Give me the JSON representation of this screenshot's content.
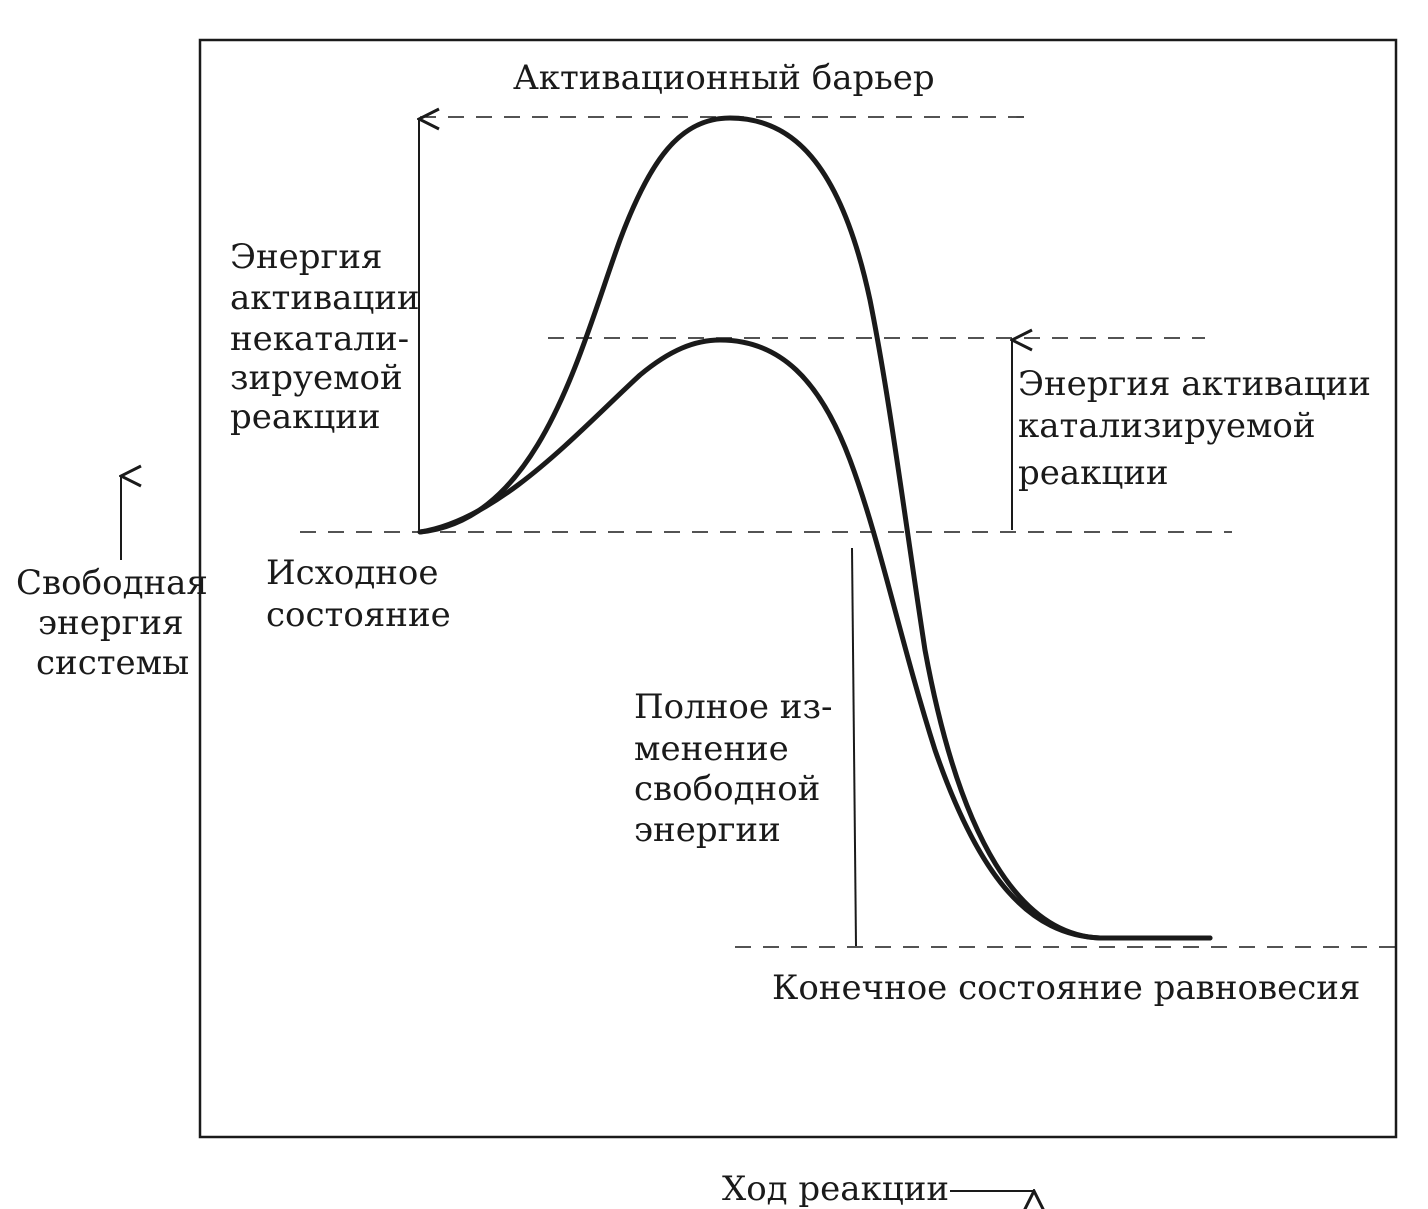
{
  "labels": {
    "activation_barrier": "Активационный барьер",
    "uncatalyzed_energy": [
      "Энергия",
      "активации",
      "некатали-",
      "зируемой",
      "реакции"
    ],
    "catalyzed_energy": [
      "Энергия активации",
      "катализируемой",
      "реакции"
    ],
    "initial_state": [
      "Исходное",
      "состояние"
    ],
    "free_energy_change": [
      "Полное из-",
      "менение",
      "свободной",
      "энергии"
    ],
    "final_state": "Конечное состояние равновесия",
    "y_axis": [
      "Свободная",
      "энергия",
      "системы"
    ],
    "x_axis": "Ход реакции"
  },
  "colors": {
    "ink": "#1a1a1a",
    "background": "#ffffff"
  }
}
